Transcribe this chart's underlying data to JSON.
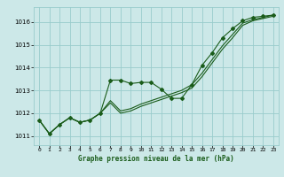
{
  "title": "Graphe pression niveau de la mer (hPa)",
  "background_color": "#cce8e8",
  "grid_color": "#99cccc",
  "line_color": "#1a5c1a",
  "x_values": [
    0,
    1,
    2,
    3,
    4,
    5,
    6,
    7,
    8,
    9,
    10,
    11,
    12,
    13,
    14,
    15,
    16,
    17,
    18,
    19,
    20,
    21,
    22,
    23
  ],
  "y_measured": [
    1011.7,
    1011.1,
    1011.5,
    1011.8,
    1011.6,
    1011.7,
    1012.0,
    1013.45,
    1013.45,
    1013.3,
    1013.35,
    1013.35,
    1013.05,
    1012.65,
    1012.65,
    1013.25,
    1014.1,
    1014.65,
    1015.3,
    1015.7,
    1016.05,
    1016.2,
    1016.25,
    1016.3
  ],
  "y_trend1": [
    1011.7,
    1011.1,
    1011.5,
    1011.8,
    1011.6,
    1011.7,
    1012.0,
    1012.55,
    1012.1,
    1012.2,
    1012.4,
    1012.55,
    1012.7,
    1012.85,
    1013.0,
    1013.25,
    1013.75,
    1014.35,
    1014.95,
    1015.45,
    1015.95,
    1016.1,
    1016.2,
    1016.3
  ],
  "y_trend2": [
    1011.7,
    1011.1,
    1011.5,
    1011.8,
    1011.6,
    1011.7,
    1012.0,
    1012.45,
    1012.0,
    1012.1,
    1012.3,
    1012.45,
    1012.6,
    1012.75,
    1012.9,
    1013.1,
    1013.6,
    1014.2,
    1014.8,
    1015.3,
    1015.85,
    1016.05,
    1016.15,
    1016.25
  ],
  "ylim": [
    1010.6,
    1016.65
  ],
  "yticks": [
    1011,
    1012,
    1013,
    1014,
    1015,
    1016
  ],
  "xticks": [
    0,
    1,
    2,
    3,
    4,
    5,
    6,
    7,
    8,
    9,
    10,
    11,
    12,
    13,
    14,
    15,
    16,
    17,
    18,
    19,
    20,
    21,
    22,
    23
  ],
  "marker": "D",
  "marker_size": 2.0,
  "line_width": 0.8
}
